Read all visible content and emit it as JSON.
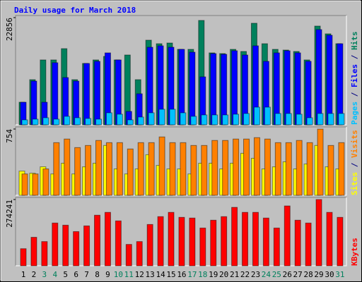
{
  "chart_data": [
    {
      "type": "bar",
      "title": "Daily usage for March 2018",
      "ylim": [
        0,
        22856
      ],
      "yticks": [
        22856
      ],
      "legend_reversed": true,
      "legend_separator": " / ",
      "separator_color": "#000080",
      "series": [
        {
          "name": "Hits",
          "color": "#00805c",
          "values": [
            4813,
            9626,
            13837,
            13837,
            16243,
            9626,
            13085,
            13837,
            14589,
            13837,
            14890,
            9626,
            18048,
            17296,
            17446,
            16093,
            16093,
            22259,
            15341,
            15190,
            16093,
            15642,
            21658,
            17296,
            16093,
            15942,
            15642,
            13837,
            21056,
            19402,
            17296
          ]
        },
        {
          "name": "Files",
          "color": "#0000ff",
          "values": [
            4813,
            9325,
            4813,
            13235,
            10077,
            9325,
            13085,
            13536,
            15341,
            13837,
            2858,
            6618,
            16544,
            16845,
            16544,
            16093,
            15491,
            10227,
            15190,
            15040,
            15792,
            14890,
            16845,
            13536,
            15341,
            15792,
            15341,
            13536,
            20304,
            19101,
            17296
          ]
        },
        {
          "name": "Pages",
          "color": "#00c0ff",
          "values": [
            1053,
            1203,
            1504,
            1203,
            1805,
            1504,
            1354,
            1203,
            2557,
            2256,
            1053,
            1654,
            2557,
            3309,
            3309,
            2557,
            1805,
            2106,
            2106,
            2106,
            2256,
            2406,
            3760,
            3760,
            2406,
            2406,
            2256,
            1504,
            2406,
            2406,
            2406
          ]
        }
      ]
    },
    {
      "type": "bar",
      "ylim": [
        0,
        754
      ],
      "yticks": [
        754
      ],
      "legend_reversed": false,
      "legend_separator": " / ",
      "separator_color": "#000080",
      "series": [
        {
          "name": "Sites",
          "color": "#ffff00",
          "values": [
            275,
            251,
            324,
            243,
            365,
            243,
            324,
            365,
            567,
            300,
            243,
            300,
            462,
            340,
            300,
            300,
            243,
            365,
            365,
            300,
            365,
            478,
            421,
            300,
            324,
            381,
            300,
            356,
            567,
            324,
            300
          ]
        },
        {
          "name": "Visits",
          "color": "#ff8000",
          "values": [
            243,
            243,
            300,
            599,
            640,
            543,
            567,
            624,
            599,
            599,
            527,
            599,
            599,
            664,
            599,
            599,
            567,
            567,
            624,
            624,
            640,
            640,
            656,
            640,
            599,
            599,
            624,
            599,
            753,
            567,
            599
          ]
        }
      ]
    },
    {
      "type": "bar",
      "ylim": [
        0,
        274241
      ],
      "yticks": [
        274241
      ],
      "legend_reversed": false,
      "categories": [
        "1",
        "2",
        "3",
        "4",
        "5",
        "6",
        "7",
        "8",
        "9",
        "10",
        "11",
        "12",
        "13",
        "14",
        "15",
        "16",
        "17",
        "18",
        "19",
        "20",
        "21",
        "22",
        "23",
        "24",
        "25",
        "26",
        "27",
        "28",
        "29",
        "30",
        "31"
      ],
      "category_colors": [
        "#000000",
        "#000000",
        "#00805c",
        "#00805c",
        "#000000",
        "#000000",
        "#000000",
        "#000000",
        "#000000",
        "#00805c",
        "#00805c",
        "#000000",
        "#000000",
        "#000000",
        "#000000",
        "#000000",
        "#00805c",
        "#00805c",
        "#000000",
        "#000000",
        "#000000",
        "#000000",
        "#000000",
        "#00805c",
        "#00805c",
        "#000000",
        "#000000",
        "#000000",
        "#000000",
        "#000000",
        "#00805c"
      ],
      "series": [
        {
          "name": "KBytes",
          "color": "#ff0000",
          "values": [
            70776,
            117960,
            100266,
            176940,
            168093,
            141552,
            165144,
            209379,
            221175,
            185787,
            88470,
            100266,
            171042,
            203481,
            221175,
            200532,
            197583,
            156297,
            188736,
            203481,
            241818,
            221175,
            221175,
            197583,
            156297,
            247716,
            188736,
            176940,
            274241,
            221175,
            200532
          ]
        }
      ]
    }
  ]
}
